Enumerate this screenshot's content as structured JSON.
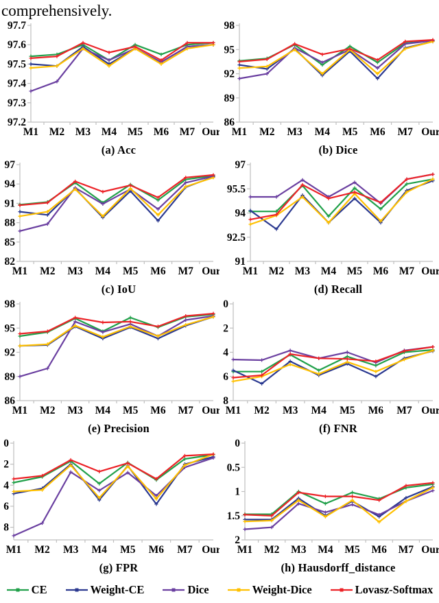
{
  "page": {
    "intro_text": "comprehensively."
  },
  "axis": {
    "line_color": "#BFBFBF",
    "label_color": "#000000"
  },
  "series_colors": {
    "CE": "#21A04A",
    "Weight-CE": "#2B3990",
    "Dice": "#6A3FA0",
    "Weight-Dice": "#FFC000",
    "Lovasz-Softmax": "#EC2227"
  },
  "legend": {
    "position": "bottom",
    "items": [
      {
        "label": "CE",
        "color": "#21A04A"
      },
      {
        "label": "Weight-CE",
        "color": "#2B3990"
      },
      {
        "label": "Dice",
        "color": "#6A3FA0"
      },
      {
        "label": "Weight-Dice",
        "color": "#FFC000"
      },
      {
        "label": "Lovasz-Softmax",
        "color": "#EC2227"
      }
    ]
  },
  "chart_data": [
    {
      "type": "line",
      "title": "(a) Acc",
      "xlabel": "",
      "ylabel": "",
      "categories": [
        "M1",
        "M2",
        "M3",
        "M4",
        "M5",
        "M6",
        "M7",
        "Ours"
      ],
      "ylim": [
        97.2,
        97.7
      ],
      "yticks": [
        97.2,
        97.3,
        97.4,
        97.5,
        97.6,
        97.7
      ],
      "y_inverted": false,
      "grid": false,
      "series": [
        {
          "name": "CE",
          "values": [
            97.54,
            97.55,
            97.6,
            97.52,
            97.6,
            97.55,
            97.6,
            97.61
          ]
        },
        {
          "name": "Weight-CE",
          "values": [
            97.5,
            97.49,
            97.59,
            97.5,
            97.58,
            97.51,
            97.59,
            97.6
          ]
        },
        {
          "name": "Dice",
          "values": [
            97.36,
            97.41,
            97.58,
            97.52,
            97.58,
            97.51,
            97.59,
            97.6
          ]
        },
        {
          "name": "Weight-Dice",
          "values": [
            97.48,
            97.49,
            97.58,
            97.49,
            97.58,
            97.5,
            97.58,
            97.6
          ]
        },
        {
          "name": "Lovasz-Softmax",
          "values": [
            97.53,
            97.54,
            97.61,
            97.56,
            97.59,
            97.52,
            97.61,
            97.61
          ]
        }
      ]
    },
    {
      "type": "line",
      "title": "(b) Dice",
      "xlabel": "",
      "ylabel": "",
      "categories": [
        "M1",
        "M2",
        "M3",
        "M4",
        "M5",
        "M6",
        "M7",
        "Ours"
      ],
      "ylim": [
        86,
        98
      ],
      "yticks": [
        86,
        89,
        92,
        95,
        98
      ],
      "y_inverted": false,
      "grid": false,
      "series": [
        {
          "name": "CE",
          "values": [
            93.6,
            93.9,
            95.6,
            93.1,
            95.4,
            93.4,
            95.8,
            96.1
          ]
        },
        {
          "name": "Weight-CE",
          "values": [
            93.1,
            92.6,
            95.1,
            91.8,
            94.8,
            91.4,
            95.2,
            96.0
          ]
        },
        {
          "name": "Dice",
          "values": [
            91.4,
            92.0,
            95.2,
            93.4,
            95.0,
            92.7,
            95.7,
            96.1
          ]
        },
        {
          "name": "Weight-Dice",
          "values": [
            92.7,
            92.9,
            95.0,
            92.0,
            95.0,
            92.0,
            95.1,
            96.0
          ]
        },
        {
          "name": "Lovasz-Softmax",
          "values": [
            93.5,
            93.8,
            95.7,
            94.4,
            95.1,
            93.7,
            96.0,
            96.2
          ]
        }
      ]
    },
    {
      "type": "line",
      "title": "(c) IoU",
      "xlabel": "",
      "ylabel": "",
      "categories": [
        "M1",
        "M2",
        "M3",
        "M4",
        "M5",
        "M6",
        "M7",
        "Ours"
      ],
      "ylim": [
        82,
        97
      ],
      "yticks": [
        82,
        85,
        88,
        91,
        94,
        97
      ],
      "y_inverted": false,
      "grid": false,
      "series": [
        {
          "name": "CE",
          "values": [
            90.8,
            91.2,
            94.2,
            91.1,
            93.9,
            91.5,
            94.7,
            95.3
          ]
        },
        {
          "name": "Weight-CE",
          "values": [
            89.7,
            89.2,
            93.3,
            88.8,
            92.9,
            88.3,
            93.5,
            95.1
          ]
        },
        {
          "name": "Dice",
          "values": [
            86.7,
            87.8,
            93.4,
            90.9,
            93.2,
            90.1,
            94.2,
            95.2
          ]
        },
        {
          "name": "Weight-Dice",
          "values": [
            89.0,
            89.7,
            93.2,
            89.0,
            93.3,
            89.2,
            93.6,
            95.0
          ]
        },
        {
          "name": "Lovasz-Softmax",
          "values": [
            90.7,
            91.1,
            94.4,
            92.8,
            93.8,
            91.9,
            95.0,
            95.4
          ]
        }
      ]
    },
    {
      "type": "line",
      "title": "(d) Recall",
      "xlabel": "",
      "ylabel": "",
      "categories": [
        "M1",
        "M2",
        "M3",
        "M4",
        "M5",
        "M6",
        "M7",
        "Ours"
      ],
      "ylim": [
        91,
        97
      ],
      "yticks": [
        91,
        92.5,
        94,
        95.5,
        97
      ],
      "y_inverted": false,
      "grid": false,
      "series": [
        {
          "name": "CE",
          "values": [
            94.1,
            94.1,
            95.7,
            93.8,
            95.55,
            94.25,
            95.8,
            96.1
          ]
        },
        {
          "name": "Weight-CE",
          "values": [
            94.15,
            93.0,
            95.1,
            93.4,
            94.9,
            93.4,
            95.4,
            96.0
          ]
        },
        {
          "name": "Dice",
          "values": [
            95.0,
            95.0,
            96.05,
            95.0,
            95.9,
            94.6,
            96.1,
            96.4
          ]
        },
        {
          "name": "Weight-Dice",
          "values": [
            93.3,
            93.85,
            95.0,
            93.4,
            95.2,
            93.5,
            95.3,
            96.1
          ]
        },
        {
          "name": "Lovasz-Softmax",
          "values": [
            93.6,
            93.9,
            95.75,
            94.9,
            95.3,
            94.65,
            96.1,
            96.4
          ]
        }
      ]
    },
    {
      "type": "line",
      "title": "(e) Precision",
      "xlabel": "",
      "ylabel": "",
      "categories": [
        "M1",
        "M2",
        "M3",
        "M4",
        "M5",
        "M6",
        "M7",
        "Ours"
      ],
      "ylim": [
        86,
        98
      ],
      "yticks": [
        86,
        89,
        92,
        95,
        98
      ],
      "y_inverted": false,
      "grid": false,
      "series": [
        {
          "name": "CE",
          "values": [
            94.0,
            94.5,
            96.2,
            94.6,
            96.3,
            95.1,
            96.4,
            96.7
          ]
        },
        {
          "name": "Weight-CE",
          "values": [
            92.8,
            92.9,
            95.2,
            93.7,
            95.1,
            93.7,
            95.3,
            96.4
          ]
        },
        {
          "name": "Dice",
          "values": [
            89.0,
            90.0,
            95.8,
            94.5,
            95.5,
            94.0,
            96.0,
            96.5
          ]
        },
        {
          "name": "Weight-Dice",
          "values": [
            92.8,
            93.0,
            95.3,
            93.9,
            95.2,
            94.0,
            95.4,
            96.4
          ]
        },
        {
          "name": "Lovasz-Softmax",
          "values": [
            94.3,
            94.6,
            96.3,
            95.7,
            95.8,
            95.2,
            96.5,
            96.8
          ]
        }
      ]
    },
    {
      "type": "line",
      "title": "(f) FNR",
      "xlabel": "",
      "ylabel": "",
      "categories": [
        "M1",
        "M2",
        "M3",
        "M4",
        "M5",
        "M6",
        "M7",
        "Ours"
      ],
      "ylim": [
        0,
        8
      ],
      "yticks": [
        0,
        2,
        4,
        6,
        8
      ],
      "y_inverted": true,
      "grid": false,
      "series": [
        {
          "name": "CE",
          "values": [
            5.6,
            5.6,
            4.2,
            5.5,
            4.35,
            5.1,
            4.0,
            3.8
          ]
        },
        {
          "name": "Weight-CE",
          "values": [
            5.5,
            6.6,
            4.75,
            5.9,
            4.95,
            6.0,
            4.5,
            3.9
          ]
        },
        {
          "name": "Dice",
          "values": [
            4.6,
            4.65,
            3.85,
            4.5,
            4.0,
            4.85,
            3.85,
            3.55
          ]
        },
        {
          "name": "Weight-Dice",
          "values": [
            6.4,
            6.0,
            5.0,
            5.8,
            4.8,
            5.6,
            4.6,
            3.85
          ]
        },
        {
          "name": "Lovasz-Softmax",
          "values": [
            6.1,
            5.9,
            4.15,
            4.5,
            4.55,
            4.75,
            3.9,
            3.55
          ]
        }
      ]
    },
    {
      "type": "line",
      "title": "(g) FPR",
      "xlabel": "",
      "ylabel": "",
      "categories": [
        "M1",
        "M2",
        "M3",
        "M4",
        "M5",
        "M6",
        "M7",
        "Ours"
      ],
      "ylim": [
        0,
        9.2
      ],
      "yticks": [
        0,
        2,
        4,
        6,
        8
      ],
      "y_inverted": true,
      "grid": false,
      "series": [
        {
          "name": "CE",
          "values": [
            3.75,
            3.2,
            1.7,
            3.85,
            1.85,
            3.5,
            1.5,
            1.1
          ]
        },
        {
          "name": "Weight-CE",
          "values": [
            4.8,
            4.3,
            2.0,
            5.4,
            2.15,
            5.8,
            2.0,
            1.3
          ]
        },
        {
          "name": "Dice",
          "values": [
            8.8,
            7.6,
            2.75,
            4.5,
            2.8,
            5.0,
            2.3,
            1.4
          ]
        },
        {
          "name": "Weight-Dice",
          "values": [
            4.6,
            4.45,
            2.1,
            5.2,
            2.2,
            5.3,
            2.1,
            1.05
          ]
        },
        {
          "name": "Lovasz-Softmax",
          "values": [
            3.4,
            3.1,
            1.6,
            2.7,
            1.9,
            3.4,
            1.2,
            1.05
          ]
        }
      ]
    },
    {
      "type": "line",
      "title": "(h) Hausdorff_distance",
      "xlabel": "",
      "ylabel": "",
      "categories": [
        "M1",
        "M2",
        "M3",
        "M4",
        "M5",
        "M6",
        "M7",
        "Ours"
      ],
      "ylim": [
        0,
        2
      ],
      "yticks": [
        0,
        0.5,
        1,
        1.5,
        2
      ],
      "y_inverted": true,
      "grid": false,
      "series": [
        {
          "name": "CE",
          "values": [
            1.47,
            1.47,
            1.0,
            1.25,
            1.02,
            1.15,
            0.92,
            0.85
          ]
        },
        {
          "name": "Weight-CE",
          "values": [
            1.58,
            1.58,
            1.14,
            1.5,
            1.2,
            1.52,
            1.13,
            0.9
          ]
        },
        {
          "name": "Dice",
          "values": [
            1.78,
            1.74,
            1.25,
            1.43,
            1.27,
            1.48,
            1.2,
            0.98
          ]
        },
        {
          "name": "Weight-Dice",
          "values": [
            1.62,
            1.6,
            1.18,
            1.52,
            1.18,
            1.63,
            1.2,
            0.92
          ]
        },
        {
          "name": "Lovasz-Softmax",
          "values": [
            1.48,
            1.5,
            1.02,
            1.1,
            1.1,
            1.18,
            0.88,
            0.82
          ]
        }
      ]
    }
  ]
}
